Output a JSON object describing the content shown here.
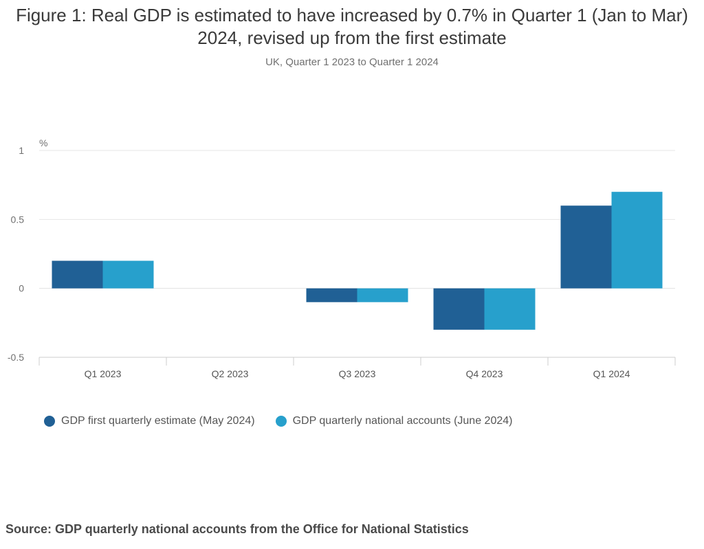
{
  "header": {
    "title": "Figure 1: Real GDP is estimated to have increased by 0.7% in Quarter 1 (Jan to Mar) 2024, revised up from the first estimate",
    "subtitle": "UK, Quarter 1 2023 to Quarter 1 2024"
  },
  "chart_data": {
    "type": "bar",
    "title": "Figure 1: Real GDP is estimated to have increased by 0.7% in Quarter 1 (Jan to Mar) 2024, revised up from the first estimate",
    "subtitle": "UK, Quarter 1 2023 to Quarter 1 2024",
    "ylabel": "%",
    "xlabel": "",
    "categories": [
      "Q1 2023",
      "Q2 2023",
      "Q3 2023",
      "Q4 2023",
      "Q1 2024"
    ],
    "series": [
      {
        "name": "GDP first quarterly estimate (May 2024)",
        "color": "#206095",
        "values": [
          0.2,
          0.0,
          -0.1,
          -0.3,
          0.6
        ]
      },
      {
        "name": "GDP quarterly national accounts (June 2024)",
        "color": "#27a0cc",
        "values": [
          0.2,
          0.0,
          -0.1,
          -0.3,
          0.7
        ]
      }
    ],
    "ylim": [
      -0.5,
      1
    ],
    "yticks": [
      1,
      0.5,
      0,
      -0.5
    ],
    "ytick_labels": [
      "1",
      "0.5",
      "0",
      "-0.5"
    ],
    "grid": true,
    "legend_position": "bottom-left"
  },
  "source": "Source: GDP quarterly national accounts from the Office for National Statistics"
}
